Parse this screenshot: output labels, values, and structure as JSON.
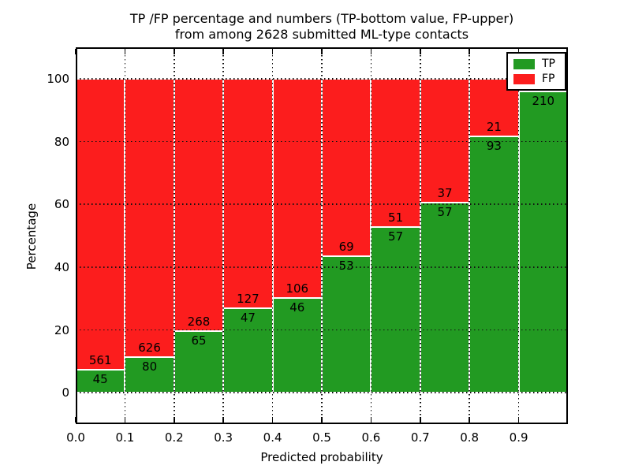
{
  "title": {
    "line1": "TP /FP percentage and numbers (TP-bottom value, FP-upper)",
    "line2": "from among 2628 submitted ML-type contacts"
  },
  "axes": {
    "xlabel": "Predicted probability",
    "ylabel": "Percentage",
    "xtick_labels": [
      "0.0",
      "0.1",
      "0.2",
      "0.3",
      "0.4",
      "0.5",
      "0.6",
      "0.7",
      "0.8",
      "0.9"
    ],
    "xtick_values": [
      0.0,
      0.1,
      0.2,
      0.3,
      0.4,
      0.5,
      0.6,
      0.7,
      0.8,
      0.9
    ],
    "ytick_labels": [
      "0",
      "20",
      "40",
      "60",
      "80",
      "100"
    ],
    "ytick_values": [
      0,
      20,
      40,
      60,
      80,
      100
    ],
    "xlim": [
      0.0,
      1.0
    ],
    "ylim": [
      -10,
      110
    ],
    "grid_style": "dotted"
  },
  "legend": {
    "position": "upper-right",
    "items": [
      {
        "label": "TP",
        "color": "#229A22"
      },
      {
        "label": "FP",
        "color": "#FC1D1D"
      }
    ]
  },
  "chart_data": {
    "type": "bar",
    "stacked": true,
    "title": "TP /FP percentage and numbers (TP-bottom value, FP-upper) from among 2628 submitted ML-type contacts",
    "total_contacts": 2628,
    "xlabel": "Predicted probability",
    "ylabel": "Percentage",
    "bin_edges": [
      0.0,
      0.1,
      0.2,
      0.3,
      0.4,
      0.5,
      0.6,
      0.7,
      0.8,
      0.9,
      1.0
    ],
    "categories": [
      "0.0-0.1",
      "0.1-0.2",
      "0.2-0.3",
      "0.3-0.4",
      "0.4-0.5",
      "0.5-0.6",
      "0.6-0.7",
      "0.7-0.8",
      "0.8-0.9",
      "0.9-1.0"
    ],
    "series": [
      {
        "name": "TP",
        "color": "#229A22",
        "counts": [
          45,
          80,
          65,
          47,
          46,
          53,
          57,
          57,
          93,
          210
        ],
        "percent": [
          7.43,
          11.33,
          19.52,
          27.01,
          30.26,
          43.44,
          52.78,
          60.64,
          81.58,
          95.89
        ]
      },
      {
        "name": "FP",
        "color": "#FC1D1D",
        "counts": [
          561,
          626,
          268,
          127,
          106,
          69,
          51,
          37,
          21,
          null
        ],
        "percent": [
          92.57,
          88.67,
          80.48,
          72.99,
          69.74,
          56.56,
          47.22,
          39.36,
          18.42,
          4.11
        ]
      }
    ],
    "bar_labels": {
      "tp": [
        "45",
        "80",
        "65",
        "47",
        "46",
        "53",
        "57",
        "57",
        "93",
        "210"
      ],
      "fp": [
        "561",
        "626",
        "268",
        "127",
        "106",
        "69",
        "51",
        "37",
        "21",
        ""
      ]
    },
    "ylim": [
      -10,
      110
    ],
    "grid": true,
    "legend_position": "upper right"
  }
}
